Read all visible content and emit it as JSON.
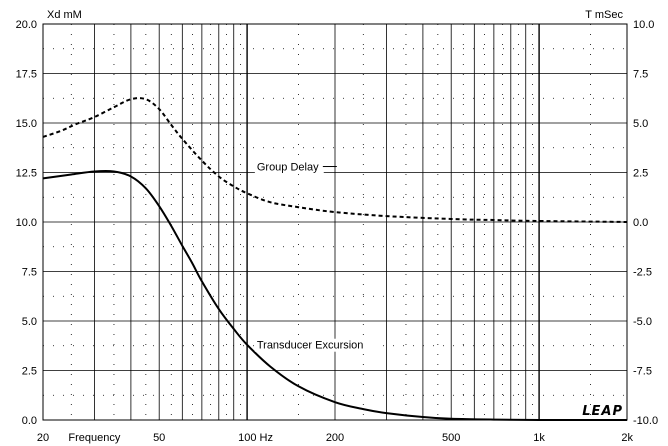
{
  "chart_data": {
    "type": "line",
    "title": "",
    "xlabel": "Frequency",
    "x_scale": "log",
    "xlim": [
      20,
      2000
    ],
    "x_ticks": [
      {
        "value": 20,
        "label": "20"
      },
      {
        "value": 50,
        "label": "50"
      },
      {
        "value": 100,
        "label": "100 Hz"
      },
      {
        "value": 200,
        "label": "200"
      },
      {
        "value": 500,
        "label": "500"
      },
      {
        "value": 1000,
        "label": "1k"
      },
      {
        "value": 2000,
        "label": "2k"
      }
    ],
    "ylabel_left": "Xd mM",
    "ylim_left": [
      0,
      20
    ],
    "y_ticks_left": [
      "0.0",
      "2.5",
      "5.0",
      "7.5",
      "10.0",
      "12.5",
      "15.0",
      "17.5",
      "20.0"
    ],
    "ylabel_right": "T mSec",
    "ylim_right": [
      -10,
      10
    ],
    "y_ticks_right": [
      "-10.0",
      "-7.5",
      "-5.0",
      "-2.5",
      "0.0",
      "2.5",
      "5.0",
      "7.5",
      "10.0"
    ],
    "grid": true,
    "series": [
      {
        "name": "Transducer Excursion",
        "axis": "left",
        "style": "solid",
        "x": [
          20,
          25,
          30,
          35,
          40,
          45,
          50,
          55,
          60,
          65,
          70,
          80,
          90,
          100,
          120,
          150,
          200,
          250,
          300,
          400,
          500,
          700,
          1000,
          1500,
          2000
        ],
        "y": [
          12.2,
          12.4,
          12.55,
          12.55,
          12.3,
          11.7,
          10.8,
          9.8,
          8.8,
          7.9,
          7.0,
          5.6,
          4.6,
          3.8,
          2.7,
          1.7,
          0.9,
          0.55,
          0.35,
          0.15,
          0.06,
          0.02,
          0.0,
          0.0,
          0.0
        ]
      },
      {
        "name": "Group Delay",
        "axis": "right",
        "style": "dashed",
        "x": [
          20,
          23,
          26,
          30,
          35,
          40,
          45,
          50,
          55,
          60,
          70,
          80,
          90,
          100,
          120,
          150,
          200,
          300,
          500,
          700,
          1000,
          2000
        ],
        "y": [
          4.3,
          4.6,
          4.95,
          5.3,
          5.8,
          6.2,
          6.2,
          5.7,
          4.9,
          4.2,
          3.1,
          2.3,
          1.8,
          1.45,
          1.0,
          0.75,
          0.5,
          0.3,
          0.15,
          0.1,
          0.05,
          0.0
        ]
      }
    ],
    "annotations": [
      {
        "text": "Group Delay",
        "series": "Group Delay"
      },
      {
        "text": "Transducer Excursion",
        "series": "Transducer Excursion"
      }
    ],
    "logo_text": "LEAP"
  }
}
